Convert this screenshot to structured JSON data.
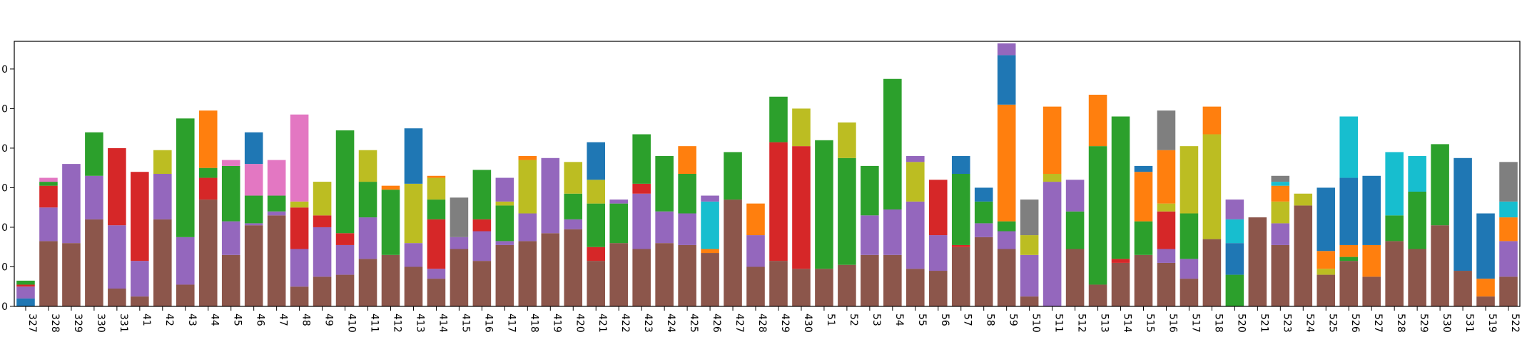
{
  "chart_data": {
    "type": "bar",
    "stacked": true,
    "title": "",
    "xlabel": "",
    "ylabel": "",
    "ylim": [
      0,
      67
    ],
    "y_ticks": [
      0,
      10,
      20,
      30,
      40,
      50,
      60
    ],
    "y_tick_labels": [
      "0",
      "0",
      "0",
      "0",
      "0",
      "0",
      "0"
    ],
    "categories": [
      "327",
      "328",
      "329",
      "330",
      "331",
      "41",
      "42",
      "43",
      "44",
      "45",
      "46",
      "47",
      "48",
      "49",
      "410",
      "411",
      "412",
      "413",
      "414",
      "415",
      "416",
      "417",
      "418",
      "419",
      "420",
      "421",
      "422",
      "423",
      "424",
      "425",
      "426",
      "427",
      "428",
      "429",
      "430",
      "51",
      "52",
      "53",
      "54",
      "55",
      "56",
      "57",
      "58",
      "59",
      "510",
      "511",
      "512",
      "513",
      "514",
      "515",
      "516",
      "517",
      "518",
      "520",
      "521",
      "523",
      "524",
      "525",
      "526",
      "527",
      "528",
      "529",
      "530",
      "531",
      "519",
      "522"
    ],
    "series": [
      {
        "color": "#8c564b",
        "values": [
          0,
          16.5,
          16,
          22,
          4.5,
          2.5,
          22,
          5.5,
          27,
          13,
          20.5,
          23,
          5,
          7.5,
          8,
          12,
          13,
          10,
          7,
          14.5,
          11.5,
          15.5,
          16.5,
          18.5,
          19.5,
          11.5,
          16,
          14.5,
          16,
          15.5,
          13.5,
          27,
          10,
          11.5,
          9.5,
          9.5,
          10.5,
          13,
          13,
          9.5,
          9,
          15,
          17.5,
          14.5,
          2.5,
          0,
          14.5,
          5.5,
          11,
          13,
          11,
          7,
          17,
          0,
          22.5,
          15.5,
          25.5,
          8,
          11.5,
          7.5,
          16.5,
          14.5,
          20.5,
          9,
          2.5,
          7.5
        ]
      },
      {
        "color": "#1f77b4",
        "values": [
          2,
          0,
          0,
          0,
          0,
          0,
          0,
          0,
          0,
          0,
          0,
          0,
          0,
          0,
          0,
          0,
          0,
          0,
          0,
          0,
          0,
          0,
          0,
          0,
          0,
          0,
          0,
          0,
          0,
          0,
          0,
          0,
          0,
          0,
          0,
          0,
          0,
          0,
          0,
          0,
          0,
          0,
          0,
          0,
          0,
          0,
          0,
          0,
          0,
          0,
          0,
          0,
          0,
          0,
          0,
          0,
          0,
          0,
          0,
          0,
          0,
          0,
          0,
          0,
          0,
          0
        ]
      },
      {
        "color": "#9467bd",
        "values": [
          3,
          8.5,
          20,
          11,
          16,
          9,
          11.5,
          12,
          0,
          8.5,
          0.5,
          1,
          9.5,
          12.5,
          7.5,
          10.5,
          0,
          6,
          2.5,
          3,
          7.5,
          1,
          7,
          19,
          2.5,
          0,
          0,
          14,
          8,
          8,
          0,
          0,
          8,
          0,
          0,
          0,
          0,
          10,
          11.5,
          17,
          9,
          0,
          3.5,
          4.5,
          10.5,
          31.5,
          0,
          0,
          0,
          0,
          3.5,
          5,
          0,
          0,
          0,
          5.5,
          0,
          0,
          0,
          0,
          0,
          0,
          0,
          0,
          0,
          9
        ]
      },
      {
        "color": "#d62728",
        "values": [
          0.5,
          5.5,
          0,
          0,
          19.5,
          22.5,
          0,
          0,
          5.5,
          0,
          0,
          0,
          10.5,
          3,
          3,
          0,
          0,
          0,
          12.5,
          0,
          3,
          0,
          0,
          0,
          0,
          3.5,
          0,
          2.5,
          0,
          0,
          0,
          0,
          0,
          30,
          31,
          0,
          0,
          0,
          0,
          0,
          14,
          0.5,
          0,
          0,
          0,
          0,
          0,
          0,
          1,
          0,
          9.5,
          0,
          0,
          0,
          0,
          0,
          0,
          0,
          0,
          0,
          0,
          0,
          0,
          0,
          0,
          0
        ]
      },
      {
        "color": "#2ca02c",
        "values": [
          1,
          1,
          0,
          11,
          0,
          0,
          0,
          30,
          2.5,
          14,
          7,
          4,
          0,
          0,
          26,
          9,
          16.5,
          0,
          5,
          0,
          12.5,
          9,
          0,
          0,
          6.5,
          11,
          10,
          12.5,
          14,
          10,
          0,
          12,
          0,
          11.5,
          0,
          32.5,
          27,
          12.5,
          33,
          0,
          0,
          18,
          5.5,
          2.5,
          0,
          0,
          9.5,
          35,
          36,
          8.5,
          0,
          11.5,
          0,
          8,
          0,
          0,
          0,
          0,
          1,
          0,
          6.5,
          14.5,
          20.5,
          0,
          0,
          0
        ]
      },
      {
        "color": "#bcbd22",
        "values": [
          0,
          0,
          0,
          0,
          0,
          0,
          6,
          0,
          0,
          0,
          0,
          0,
          1.5,
          8.5,
          0,
          8,
          0,
          15,
          5.5,
          0,
          0,
          1,
          13.5,
          0,
          8,
          6,
          0,
          0,
          0,
          0,
          0,
          0,
          0,
          0,
          9.5,
          0,
          9,
          0,
          0,
          10,
          0,
          0,
          0,
          0,
          5,
          2,
          0,
          0,
          0,
          0,
          2,
          17,
          26.5,
          0,
          0,
          5.5,
          3,
          1.5,
          0,
          0,
          0,
          0,
          0,
          0,
          0,
          0
        ]
      },
      {
        "color": "#e377c2",
        "values": [
          0,
          1,
          0,
          0,
          0,
          0,
          0,
          0,
          0,
          1.5,
          8,
          9,
          22,
          0,
          0,
          0,
          0,
          0,
          0,
          0,
          0,
          0,
          0,
          0,
          0,
          0,
          0,
          0,
          0,
          0,
          0,
          0,
          0,
          0,
          0,
          0,
          0,
          0,
          0,
          0,
          0,
          0,
          0,
          0,
          0,
          0,
          0,
          0,
          0,
          0,
          0,
          0,
          0,
          0,
          0,
          0,
          0,
          0,
          0,
          0,
          0,
          0,
          0,
          0,
          0,
          0
        ]
      },
      {
        "color": "#ff7f0e",
        "values": [
          0,
          0,
          0,
          0,
          0,
          0,
          0,
          0,
          14.5,
          0,
          0,
          0,
          0,
          0,
          0,
          0,
          1,
          0,
          0.5,
          0,
          0,
          0,
          1,
          0,
          0,
          0,
          0,
          0,
          0,
          7,
          1,
          0,
          8,
          0,
          0,
          0,
          0,
          0,
          0,
          0,
          0,
          0,
          0,
          29.5,
          0,
          17,
          0,
          13,
          0,
          12.5,
          13.5,
          0,
          7,
          0,
          0,
          4,
          0,
          4.5,
          3,
          8,
          0,
          0,
          0,
          0,
          4.5,
          6
        ]
      },
      {
        "color": "#1f77b4",
        "values": [
          0,
          0,
          0,
          0,
          0,
          0,
          0,
          0,
          0,
          0,
          8,
          0,
          0,
          0,
          0,
          0,
          0,
          14,
          0,
          0,
          0,
          0,
          0,
          0,
          0,
          9.5,
          0,
          0,
          0,
          0,
          0,
          0,
          0,
          0,
          0,
          0,
          0,
          0,
          0,
          0,
          0,
          4.5,
          3.5,
          12.5,
          0,
          0,
          0,
          0,
          0,
          1.5,
          0,
          0,
          0,
          8,
          0,
          0,
          0,
          16,
          17,
          17.5,
          0,
          0,
          0,
          28.5,
          16.5,
          0
        ]
      },
      {
        "color": "#17becf",
        "values": [
          0,
          0,
          0,
          0,
          0,
          0,
          0,
          0,
          0,
          0,
          0,
          0,
          0,
          0,
          0,
          0,
          0,
          0,
          0,
          0,
          0,
          0,
          0,
          0,
          0,
          0,
          0,
          0,
          0,
          0,
          12,
          0,
          0,
          0,
          0,
          0,
          0,
          0,
          0,
          0,
          0,
          0,
          0,
          0,
          0,
          0,
          0,
          0,
          0,
          0,
          0,
          0,
          0,
          6,
          0,
          1,
          0,
          0,
          15.5,
          0,
          16,
          9,
          0,
          0,
          0,
          4
        ]
      },
      {
        "color": "#9467bd",
        "values": [
          0,
          0,
          0,
          0,
          0,
          0,
          0,
          0,
          0,
          0,
          0,
          0,
          0,
          0,
          0,
          0,
          0,
          0,
          0,
          0,
          0,
          6,
          0,
          0,
          0,
          0,
          1,
          0,
          0,
          0,
          1.5,
          0,
          0,
          0,
          0,
          0,
          0,
          0,
          0,
          1.5,
          0,
          0,
          0,
          3,
          0,
          0,
          8,
          0,
          0,
          0,
          0,
          0,
          0,
          5,
          0,
          0,
          0,
          0,
          0,
          0,
          0,
          0,
          0,
          0,
          0,
          0
        ]
      },
      {
        "color": "#7f7f7f",
        "values": [
          0,
          0,
          0,
          0,
          0,
          0,
          0,
          0,
          0,
          0,
          0,
          0,
          0,
          0,
          0,
          0,
          0,
          0,
          0,
          10,
          0,
          0,
          0,
          0,
          0,
          0,
          0,
          0,
          0,
          0,
          0,
          0,
          0,
          0,
          0,
          0,
          0,
          0,
          0,
          0,
          0,
          0,
          0,
          0,
          9,
          0,
          0,
          0,
          0,
          0,
          10,
          0,
          0,
          0,
          0,
          1.5,
          0,
          0,
          0,
          0,
          0,
          0,
          0,
          0,
          0,
          10
        ]
      }
    ]
  }
}
